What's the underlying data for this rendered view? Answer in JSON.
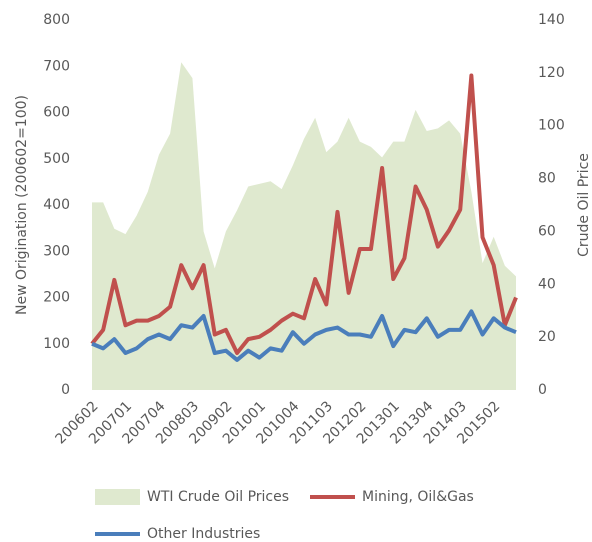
{
  "chart_data": {
    "type": "line",
    "categories": [
      "200602",
      null,
      null,
      "200701",
      null,
      null,
      "200704",
      null,
      null,
      "200803",
      null,
      null,
      "200902",
      null,
      null,
      "201001",
      null,
      null,
      "201004",
      null,
      null,
      "201103",
      null,
      null,
      "201202",
      null,
      null,
      "201301",
      null,
      null,
      "201304",
      null,
      null,
      "201403",
      null,
      null,
      "201502",
      null,
      null
    ],
    "series": [
      {
        "name": "WTI Crude Oil Prices",
        "type": "area",
        "axis": "y2",
        "color": "#dfe9cf",
        "values": [
          71,
          71,
          61,
          59,
          66,
          75,
          89,
          97,
          124,
          118,
          60,
          46,
          60,
          68,
          77,
          78,
          79,
          76,
          85,
          95,
          103,
          90,
          94,
          103,
          94,
          92,
          88,
          94,
          94,
          106,
          98,
          99,
          102,
          97,
          75,
          48,
          58,
          47,
          43
        ]
      },
      {
        "name": "Mining, Oil&Gas",
        "type": "line",
        "color": "#c0504d",
        "values": [
          100,
          130,
          238,
          140,
          150,
          150,
          160,
          180,
          270,
          220,
          270,
          120,
          130,
          80,
          110,
          115,
          130,
          150,
          165,
          155,
          240,
          185,
          385,
          210,
          305,
          305,
          480,
          240,
          285,
          440,
          390,
          310,
          345,
          390,
          680,
          330,
          270,
          140,
          200
        ]
      },
      {
        "name": "Other Industries",
        "type": "line",
        "color": "#4a7ebb",
        "values": [
          100,
          90,
          110,
          80,
          90,
          110,
          120,
          110,
          140,
          135,
          160,
          80,
          85,
          65,
          85,
          70,
          90,
          85,
          125,
          100,
          120,
          130,
          135,
          120,
          120,
          115,
          160,
          95,
          130,
          125,
          155,
          115,
          130,
          130,
          170,
          120,
          155,
          135,
          125
        ]
      }
    ],
    "y_label": "New Origination (200602=100)",
    "y2_label": "Crude Oil Price",
    "ylim": [
      0,
      800
    ],
    "yticks": [
      0,
      100,
      200,
      300,
      400,
      500,
      600,
      700,
      800
    ],
    "y2lim": [
      0,
      140
    ],
    "y2ticks": [
      0,
      20,
      40,
      60,
      80,
      100,
      120,
      140
    ]
  }
}
